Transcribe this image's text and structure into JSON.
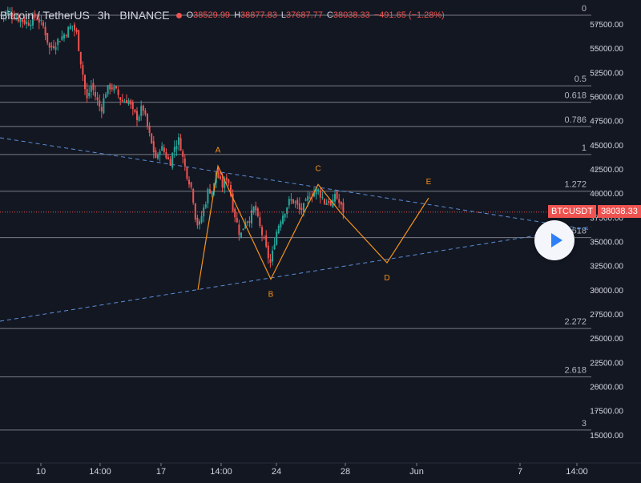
{
  "header": {
    "symbol": "Bitcoin / TetherUS",
    "timeframe": "3h",
    "exchange": "BINANCE",
    "open_label": "O",
    "open": "38529.99",
    "high_label": "H",
    "high": "38877.83",
    "low_label": "L",
    "low": "37687.77",
    "close_label": "C",
    "close": "38038.33",
    "change": "−491.65 (−1.28%)"
  },
  "price_tag": {
    "symbol": "BTCUSDT",
    "price": "38038.33"
  },
  "colors": {
    "background": "#131722",
    "up": "#26a69a",
    "down": "#ef5350",
    "pattern": "#f7931a",
    "trendline": "#5b8fd6"
  },
  "chart_data": {
    "type": "candlestick",
    "y_axis": {
      "min": 12500,
      "max": 59500,
      "ticks": [
        57500,
        55000,
        52500,
        50000,
        47500,
        45000,
        42500,
        40000,
        37500,
        35000,
        32500,
        30000,
        27500,
        25000,
        22500,
        20000,
        17500,
        15000
      ]
    },
    "x_axis": {
      "ticks": [
        "10",
        "14:00",
        "17",
        "14:00",
        "24",
        "28",
        "Jun",
        "7",
        "14:00"
      ]
    },
    "fib_levels": [
      {
        "label": "0",
        "price": 58400
      },
      {
        "label": "0.5",
        "price": 51100
      },
      {
        "label": "0.618",
        "price": 49400
      },
      {
        "label": "0.786",
        "price": 46900
      },
      {
        "label": "1",
        "price": 44000
      },
      {
        "label": "1.272",
        "price": 40200
      },
      {
        "label": "1.618",
        "price": 35400
      },
      {
        "label": "2.272",
        "price": 26000
      },
      {
        "label": "2.618",
        "price": 21000
      },
      {
        "label": "3",
        "price": 15500
      }
    ],
    "pattern_points": [
      {
        "label": "",
        "x": 247,
        "price": 30000
      },
      {
        "label": "A",
        "x": 272,
        "price": 42800
      },
      {
        "label": "B",
        "x": 338,
        "price": 31100
      },
      {
        "label": "C",
        "x": 397,
        "price": 40900
      },
      {
        "label": "",
        "x": 425,
        "price": 38000
      },
      {
        "label": "D",
        "x": 483,
        "price": 32800
      },
      {
        "label": "E",
        "x": 535,
        "price": 39500
      }
    ],
    "close_path": [
      [
        0,
        58200
      ],
      [
        10,
        58800
      ],
      [
        22,
        58100
      ],
      [
        35,
        57600
      ],
      [
        45,
        58300
      ],
      [
        55,
        57100
      ],
      [
        62,
        54900
      ],
      [
        70,
        55600
      ],
      [
        80,
        56400
      ],
      [
        90,
        57400
      ],
      [
        96,
        56400
      ],
      [
        100,
        54000
      ],
      [
        104,
        52000
      ],
      [
        108,
        49500
      ],
      [
        114,
        51200
      ],
      [
        120,
        49800
      ],
      [
        126,
        48600
      ],
      [
        132,
        50500
      ],
      [
        138,
        51100
      ],
      [
        146,
        50400
      ],
      [
        152,
        49500
      ],
      [
        160,
        49700
      ],
      [
        166,
        48300
      ],
      [
        172,
        47800
      ],
      [
        178,
        49000
      ],
      [
        184,
        46800
      ],
      [
        190,
        44800
      ],
      [
        196,
        43300
      ],
      [
        200,
        44900
      ],
      [
        206,
        44100
      ],
      [
        212,
        43100
      ],
      [
        218,
        44900
      ],
      [
        224,
        45600
      ],
      [
        228,
        43700
      ],
      [
        232,
        42300
      ],
      [
        236,
        41300
      ],
      [
        240,
        40200
      ],
      [
        244,
        37500
      ],
      [
        248,
        36400
      ],
      [
        252,
        37800
      ],
      [
        256,
        38900
      ],
      [
        260,
        40400
      ],
      [
        266,
        40200
      ],
      [
        270,
        42300
      ],
      [
        274,
        41200
      ],
      [
        278,
        40700
      ],
      [
        284,
        41900
      ],
      [
        290,
        38800
      ],
      [
        296,
        36800
      ],
      [
        300,
        35500
      ],
      [
        306,
        37200
      ],
      [
        312,
        37400
      ],
      [
        318,
        38700
      ],
      [
        322,
        37100
      ],
      [
        328,
        35500
      ],
      [
        334,
        33600
      ],
      [
        338,
        32600
      ],
      [
        342,
        34900
      ],
      [
        346,
        36300
      ],
      [
        350,
        37300
      ],
      [
        356,
        38300
      ],
      [
        362,
        39300
      ],
      [
        368,
        39100
      ],
      [
        374,
        38200
      ],
      [
        380,
        38600
      ],
      [
        386,
        39800
      ],
      [
        392,
        40100
      ],
      [
        396,
        40400
      ],
      [
        402,
        39600
      ],
      [
        406,
        38900
      ],
      [
        410,
        39300
      ],
      [
        414,
        38300
      ],
      [
        418,
        40000
      ],
      [
        422,
        39200
      ],
      [
        426,
        38500
      ],
      [
        430,
        38000
      ]
    ]
  }
}
